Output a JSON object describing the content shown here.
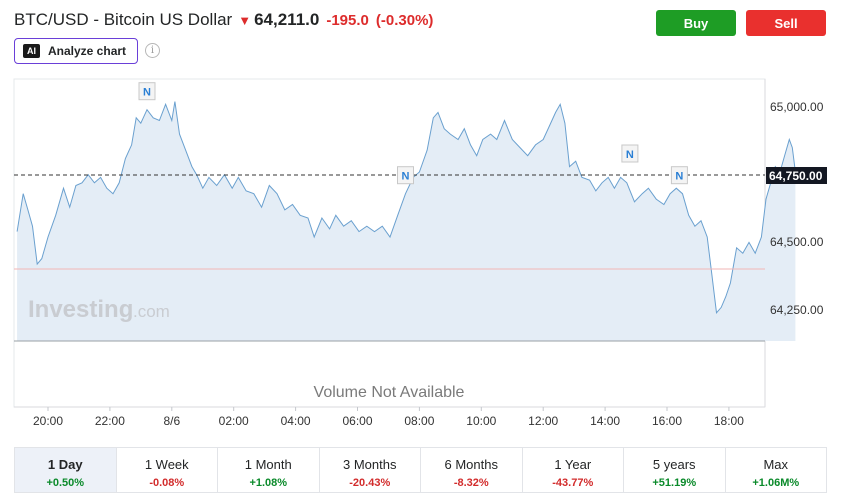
{
  "header": {
    "title": "BTC/USD - Bitcoin US Dollar",
    "direction_icon": "down-arrow-icon",
    "price": "64,211.0",
    "change": "-195.0",
    "change_pct": "(-0.30%)"
  },
  "actions": {
    "buy_label": "Buy",
    "sell_label": "Sell"
  },
  "analyze": {
    "icon_text": "AI",
    "label": "Analyze chart",
    "info_icon": "i"
  },
  "chart": {
    "y_ticks": [
      "65,000.00",
      "64,750.00",
      "64,500.00",
      "64,250.00"
    ],
    "last_price_label": "64,750.00",
    "x_ticks": [
      "20:00",
      "22:00",
      "8/6",
      "02:00",
      "04:00",
      "06:00",
      "08:00",
      "10:00",
      "12:00",
      "14:00",
      "16:00",
      "18:00"
    ],
    "volume_note": "Volume Not Available",
    "watermark": "Investing",
    "watermark_suffix": ".com",
    "news_marker": "N"
  },
  "chart_data": {
    "type": "area",
    "y_ticks": [
      65000,
      64750,
      64500,
      64250
    ],
    "reference_line": 64750,
    "baseline": 64410,
    "series": [
      {
        "values": [
          [
            19.0,
            64540
          ],
          [
            19.2,
            64680
          ],
          [
            19.35,
            64620
          ],
          [
            19.5,
            64560
          ],
          [
            19.65,
            64420
          ],
          [
            19.8,
            64440
          ],
          [
            20.0,
            64520
          ],
          [
            20.25,
            64600
          ],
          [
            20.5,
            64700
          ],
          [
            20.7,
            64630
          ],
          [
            20.9,
            64710
          ],
          [
            21.1,
            64720
          ],
          [
            21.3,
            64750
          ],
          [
            21.5,
            64720
          ],
          [
            21.7,
            64740
          ],
          [
            21.9,
            64700
          ],
          [
            22.1,
            64680
          ],
          [
            22.3,
            64720
          ],
          [
            22.5,
            64810
          ],
          [
            22.7,
            64860
          ],
          [
            22.85,
            64960
          ],
          [
            23.0,
            64940
          ],
          [
            23.2,
            64990
          ],
          [
            23.4,
            64960
          ],
          [
            23.6,
            64950
          ],
          [
            23.8,
            65010
          ],
          [
            24.0,
            64950
          ],
          [
            24.1,
            65020
          ],
          [
            24.25,
            64900
          ],
          [
            24.45,
            64840
          ],
          [
            24.65,
            64780
          ],
          [
            24.8,
            64750
          ],
          [
            25.0,
            64700
          ],
          [
            25.2,
            64740
          ],
          [
            25.45,
            64710
          ],
          [
            25.7,
            64750
          ],
          [
            25.95,
            64700
          ],
          [
            26.15,
            64740
          ],
          [
            26.4,
            64690
          ],
          [
            26.65,
            64680
          ],
          [
            26.9,
            64630
          ],
          [
            27.15,
            64710
          ],
          [
            27.4,
            64680
          ],
          [
            27.65,
            64620
          ],
          [
            27.9,
            64640
          ],
          [
            28.15,
            64600
          ],
          [
            28.4,
            64590
          ],
          [
            28.6,
            64520
          ],
          [
            28.85,
            64590
          ],
          [
            29.1,
            64550
          ],
          [
            29.3,
            64600
          ],
          [
            29.55,
            64560
          ],
          [
            29.8,
            64580
          ],
          [
            30.05,
            64540
          ],
          [
            30.3,
            64560
          ],
          [
            30.55,
            64540
          ],
          [
            30.8,
            64560
          ],
          [
            31.05,
            64520
          ],
          [
            31.3,
            64600
          ],
          [
            31.55,
            64680
          ],
          [
            31.8,
            64740
          ],
          [
            32.0,
            64760
          ],
          [
            32.25,
            64840
          ],
          [
            32.45,
            64960
          ],
          [
            32.6,
            64980
          ],
          [
            32.8,
            64920
          ],
          [
            33.0,
            64900
          ],
          [
            33.25,
            64880
          ],
          [
            33.45,
            64920
          ],
          [
            33.65,
            64860
          ],
          [
            33.85,
            64820
          ],
          [
            34.05,
            64880
          ],
          [
            34.3,
            64900
          ],
          [
            34.5,
            64880
          ],
          [
            34.75,
            64950
          ],
          [
            35.0,
            64880
          ],
          [
            35.25,
            64850
          ],
          [
            35.5,
            64820
          ],
          [
            35.75,
            64860
          ],
          [
            36.0,
            64880
          ],
          [
            36.2,
            64930
          ],
          [
            36.4,
            64980
          ],
          [
            36.55,
            65010
          ],
          [
            36.7,
            64940
          ],
          [
            36.85,
            64780
          ],
          [
            37.05,
            64800
          ],
          [
            37.25,
            64740
          ],
          [
            37.5,
            64730
          ],
          [
            37.7,
            64690
          ],
          [
            37.9,
            64720
          ],
          [
            38.1,
            64740
          ],
          [
            38.3,
            64700
          ],
          [
            38.5,
            64740
          ],
          [
            38.7,
            64720
          ],
          [
            38.95,
            64650
          ],
          [
            39.2,
            64680
          ],
          [
            39.4,
            64700
          ],
          [
            39.65,
            64660
          ],
          [
            39.9,
            64640
          ],
          [
            40.1,
            64680
          ],
          [
            40.3,
            64700
          ],
          [
            40.5,
            64680
          ],
          [
            40.7,
            64600
          ],
          [
            40.9,
            64560
          ],
          [
            41.1,
            64580
          ],
          [
            41.3,
            64520
          ],
          [
            41.45,
            64380
          ],
          [
            41.6,
            64240
          ],
          [
            41.75,
            64260
          ],
          [
            41.9,
            64300
          ],
          [
            42.05,
            64350
          ],
          [
            42.25,
            64480
          ],
          [
            42.45,
            64460
          ],
          [
            42.65,
            64500
          ],
          [
            42.85,
            64460
          ],
          [
            43.05,
            64520
          ],
          [
            43.2,
            64660
          ],
          [
            43.35,
            64720
          ],
          [
            43.5,
            64780
          ],
          [
            43.65,
            64760
          ],
          [
            43.8,
            64820
          ],
          [
            43.95,
            64880
          ],
          [
            44.05,
            64850
          ],
          [
            44.15,
            64760
          ]
        ]
      }
    ]
  },
  "periods": [
    {
      "label": "1 Day",
      "value": "+0.50%",
      "dir": "pos",
      "active": true
    },
    {
      "label": "1 Week",
      "value": "-0.08%",
      "dir": "neg",
      "active": false
    },
    {
      "label": "1 Month",
      "value": "+1.08%",
      "dir": "pos",
      "active": false
    },
    {
      "label": "3 Months",
      "value": "-20.43%",
      "dir": "neg",
      "active": false
    },
    {
      "label": "6 Months",
      "value": "-8.32%",
      "dir": "neg",
      "active": false
    },
    {
      "label": "1 Year",
      "value": "-43.77%",
      "dir": "neg",
      "active": false
    },
    {
      "label": "5 years",
      "value": "+51.19%",
      "dir": "pos",
      "active": false
    },
    {
      "label": "Max",
      "value": "+1.06M%",
      "dir": "pos",
      "active": false
    }
  ]
}
